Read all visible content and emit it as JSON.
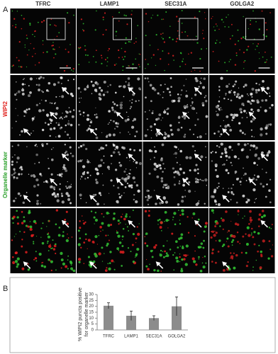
{
  "figure": {
    "panel_a": "A",
    "panel_b": "B",
    "columns": [
      "TFRC",
      "LAMP1",
      "SEC31A",
      "GOLGA2"
    ],
    "rows": [
      "WIPI2",
      "Organelle marker"
    ]
  },
  "chart_data": {
    "type": "bar",
    "y_label": "% WIPI2 puncta positive for organelle marker",
    "categories": [
      "TFRC",
      "LAMP1",
      "SEC31A",
      "GOLGA2"
    ],
    "values": [
      20.5,
      12,
      10,
      20
    ],
    "errors": [
      2.5,
      4,
      2,
      8
    ],
    "color": "#8c8c8c",
    "ylim": [
      0,
      30
    ],
    "yticks": [
      0,
      5,
      10,
      15,
      20,
      25,
      30
    ]
  }
}
